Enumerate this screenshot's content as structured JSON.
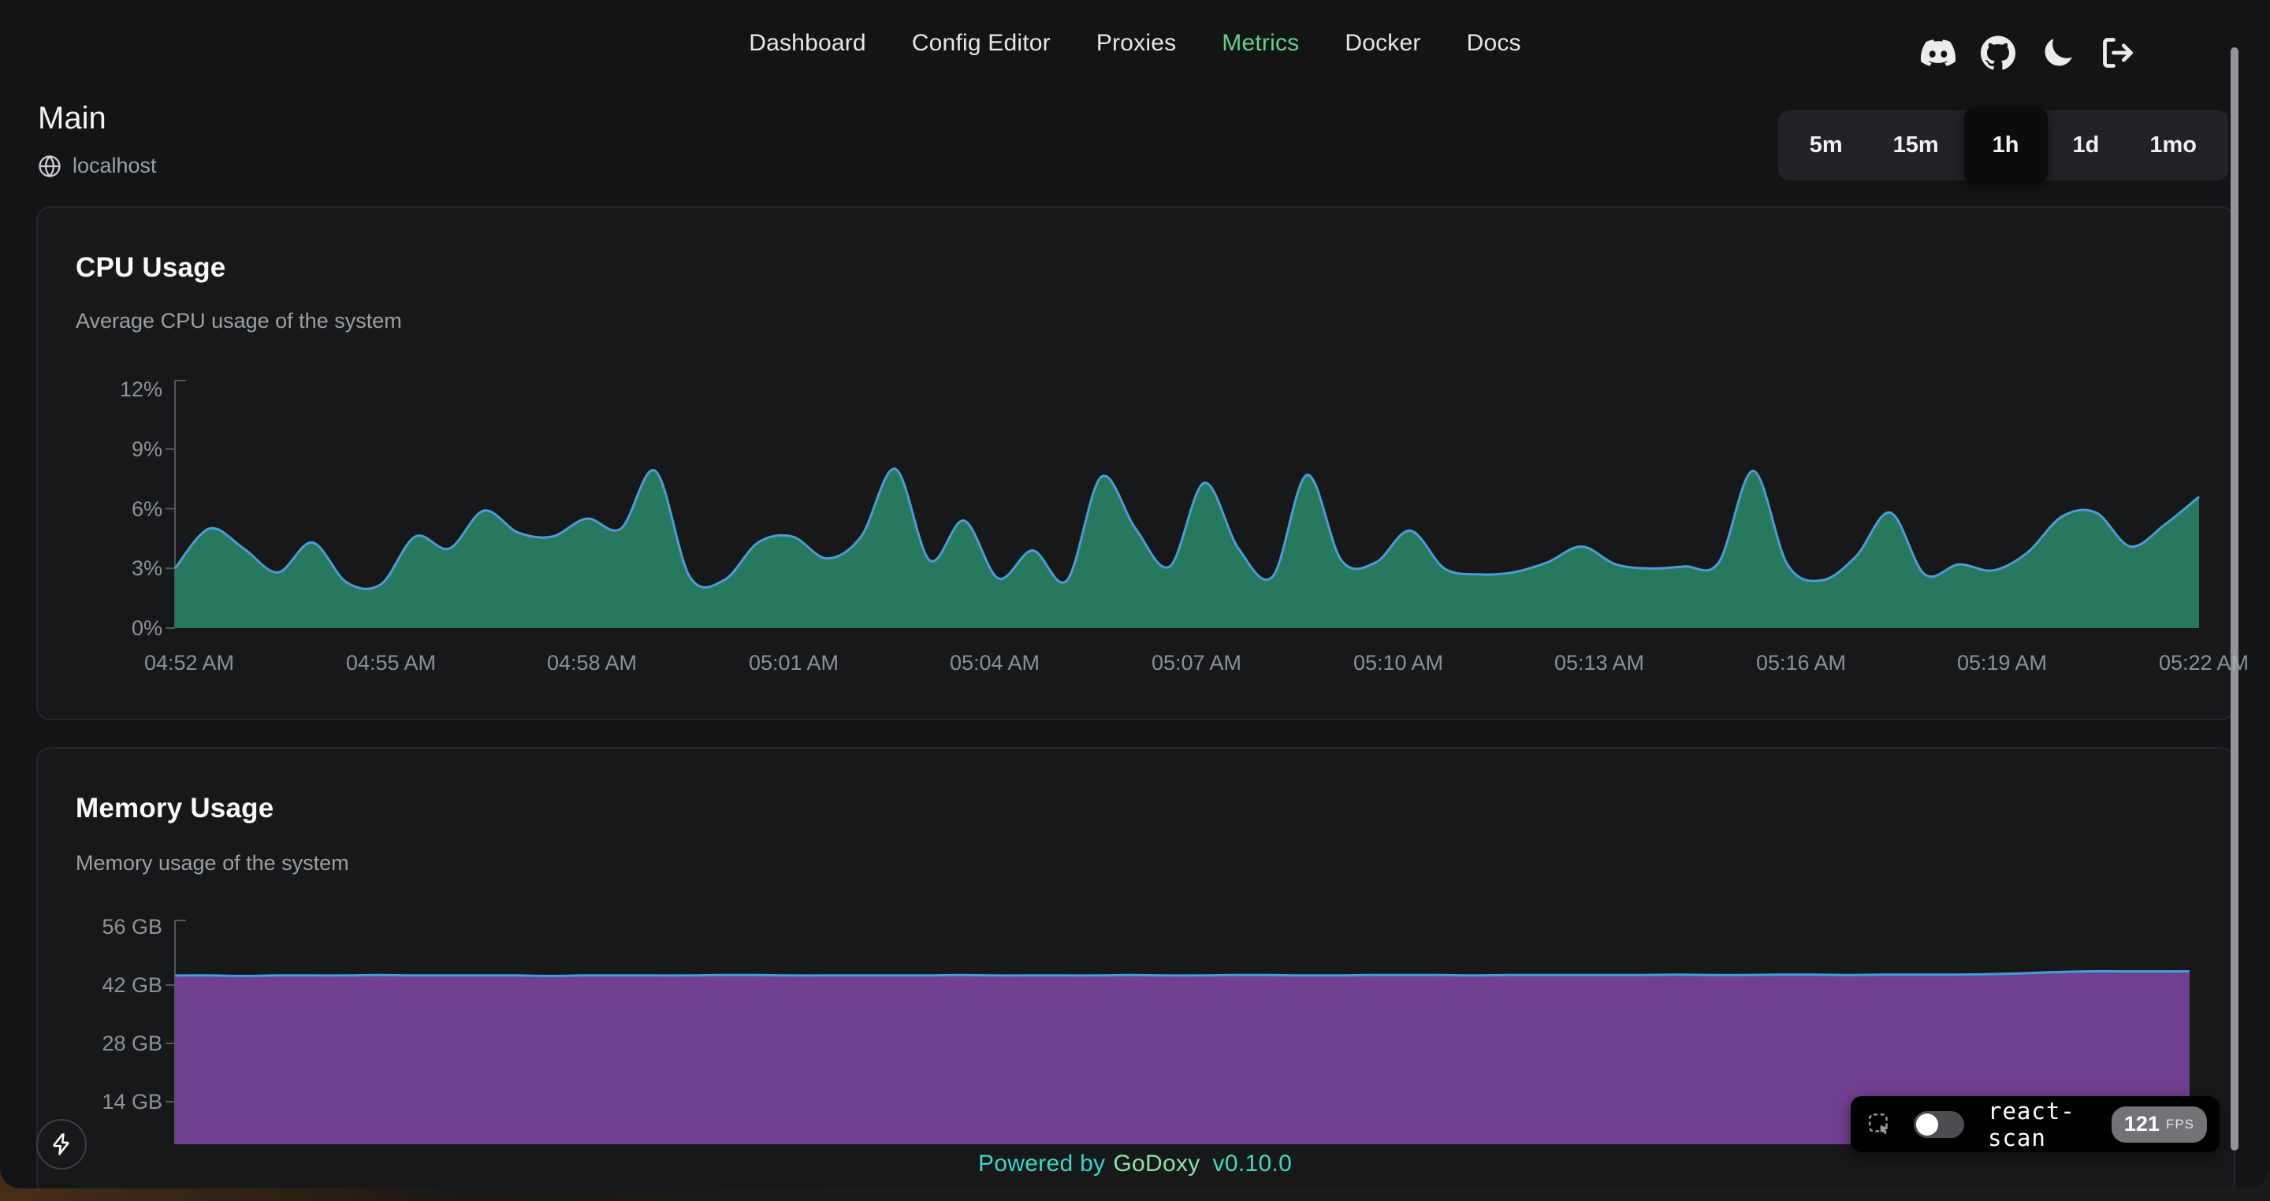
{
  "nav": {
    "items": [
      "Dashboard",
      "Config Editor",
      "Proxies",
      "Metrics",
      "Docker",
      "Docs"
    ],
    "active": "Metrics",
    "active_color": "#5ed48a",
    "icons": [
      "discord",
      "github",
      "theme-moon",
      "logout"
    ]
  },
  "header": {
    "title": "Main",
    "host": "localhost"
  },
  "time_range": {
    "options": [
      "5m",
      "15m",
      "1h",
      "1d",
      "1mo"
    ],
    "selected": "1h"
  },
  "chart_data": [
    {
      "type": "area",
      "title": "CPU Usage",
      "subtitle": "Average CPU usage of the system",
      "unit": "%",
      "ylim": [
        0,
        12
      ],
      "ylabel_ticks": [
        "12%",
        "9%",
        "6%",
        "3%",
        "0%"
      ],
      "x_ticks": [
        "04:52 AM",
        "04:55 AM",
        "04:58 AM",
        "05:01 AM",
        "05:04 AM",
        "05:07 AM",
        "05:10 AM",
        "05:13 AM",
        "05:16 AM",
        "05:19 AM",
        "05:22 AM"
      ],
      "fill_color": "#26785e",
      "line_color": "#4f9ad8",
      "values": [
        3.0,
        5.0,
        4.0,
        2.8,
        4.3,
        2.3,
        2.2,
        4.6,
        4.0,
        5.9,
        4.8,
        4.6,
        5.5,
        5.0,
        7.9,
        2.6,
        2.4,
        4.3,
        4.6,
        3.5,
        4.6,
        8.0,
        3.4,
        5.4,
        2.5,
        3.9,
        2.4,
        7.6,
        5.0,
        3.1,
        7.3,
        4.0,
        2.6,
        7.7,
        3.4,
        3.3,
        4.9,
        3.0,
        2.7,
        2.8,
        3.3,
        4.1,
        3.2,
        3.0,
        3.1,
        3.3,
        7.9,
        3.2,
        2.4,
        3.6,
        5.8,
        2.7,
        3.2,
        2.9,
        3.8,
        5.6,
        5.8,
        4.1,
        5.2,
        6.6
      ]
    },
    {
      "type": "area",
      "title": "Memory Usage",
      "subtitle": "Memory usage of the system",
      "unit": "GB",
      "ylim": [
        0,
        56
      ],
      "ylabel_ticks": [
        "56 GB",
        "42 GB",
        "28 GB",
        "14 GB"
      ],
      "x_ticks": [],
      "fill_color": "#713f90",
      "line_color": "#3da0d8",
      "values": [
        44.3,
        44.3,
        44.2,
        44.3,
        44.3,
        44.3,
        44.4,
        44.3,
        44.3,
        44.3,
        44.3,
        44.2,
        44.3,
        44.3,
        44.3,
        44.3,
        44.4,
        44.4,
        44.3,
        44.3,
        44.3,
        44.3,
        44.3,
        44.4,
        44.3,
        44.3,
        44.3,
        44.3,
        44.4,
        44.3,
        44.3,
        44.4,
        44.4,
        44.3,
        44.3,
        44.4,
        44.4,
        44.4,
        44.3,
        44.4,
        44.4,
        44.4,
        44.4,
        44.4,
        44.5,
        44.4,
        44.4,
        44.5,
        44.5,
        44.4,
        44.5,
        44.5,
        44.5,
        44.6,
        44.8,
        45.1,
        45.3,
        45.3,
        45.3,
        45.3
      ]
    }
  ],
  "footer": {
    "powered_by": "Powered by",
    "brand": "GoDoxy",
    "version": "v0.10.0"
  },
  "react_scan": {
    "label": "react-scan",
    "fps": "121",
    "fps_unit": "FPS",
    "toggle_on": false
  }
}
